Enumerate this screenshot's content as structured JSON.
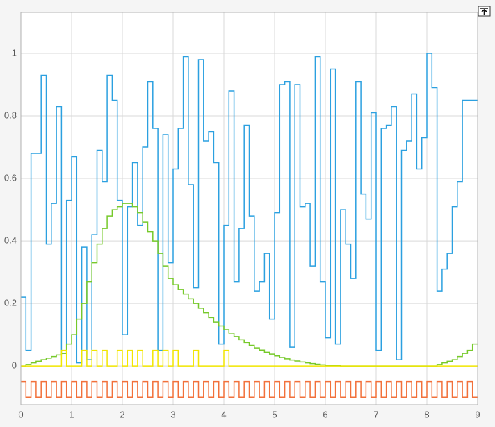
{
  "chart_data": {
    "type": "stairs",
    "x": [
      0,
      0.1,
      0.2,
      0.3,
      0.4,
      0.5,
      0.6,
      0.7,
      0.8,
      0.9,
      1.0,
      1.1,
      1.2,
      1.3,
      1.4,
      1.5,
      1.6,
      1.7,
      1.8,
      1.9,
      2.0,
      2.1,
      2.2,
      2.3,
      2.4,
      2.5,
      2.6,
      2.7,
      2.8,
      2.9,
      3.0,
      3.1,
      3.2,
      3.3,
      3.4,
      3.5,
      3.6,
      3.7,
      3.8,
      3.9,
      4.0,
      4.1,
      4.2,
      4.3,
      4.4,
      4.5,
      4.6,
      4.7,
      4.8,
      4.9,
      5.0,
      5.1,
      5.2,
      5.3,
      5.4,
      5.5,
      5.6,
      5.7,
      5.8,
      5.9,
      6.0,
      6.1,
      6.2,
      6.3,
      6.4,
      6.5,
      6.6,
      6.7,
      6.8,
      6.9,
      7.0,
      7.1,
      7.2,
      7.3,
      7.4,
      7.5,
      7.6,
      7.7,
      7.8,
      7.9,
      8.0,
      8.1,
      8.2,
      8.3,
      8.4,
      8.5,
      8.6,
      8.7,
      8.8,
      8.9
    ],
    "series": [
      {
        "color": "#2ba0e0",
        "values": [
          0.22,
          0.05,
          0.68,
          0.68,
          0.93,
          0.39,
          0.52,
          0.83,
          0.04,
          0.53,
          0.67,
          0.01,
          0.38,
          0.02,
          0.42,
          0.69,
          0.59,
          0.93,
          0.85,
          0.53,
          0.1,
          0.51,
          0.65,
          0.45,
          0.7,
          0.91,
          0.76,
          0.05,
          0.74,
          0.33,
          0.63,
          0.76,
          0.99,
          0.58,
          0.25,
          0.98,
          0.72,
          0.75,
          0.65,
          0.07,
          0.45,
          0.88,
          0.27,
          0.44,
          0.77,
          0.48,
          0.24,
          0.27,
          0.36,
          0.15,
          0.49,
          0.9,
          0.91,
          0.06,
          0.9,
          0.51,
          0.52,
          0.32,
          0.99,
          0.27,
          0.09,
          0.95,
          0.07,
          0.5,
          0.39,
          0.28,
          0.91,
          0.55,
          0.47,
          0.81,
          0.05,
          0.76,
          0.77,
          0.83,
          0.02,
          0.69,
          0.72,
          0.87,
          0.63,
          0.73,
          1.0,
          0.89,
          0.24,
          0.31,
          0.36,
          0.51,
          0.59,
          0.85,
          0.85,
          0.85
        ]
      },
      {
        "color": "#76c92a",
        "values": [
          0,
          0.005,
          0.01,
          0.015,
          0.02,
          0.025,
          0.03,
          0.035,
          0.04,
          0.07,
          0.1,
          0.15,
          0.2,
          0.27,
          0.33,
          0.39,
          0.44,
          0.48,
          0.5,
          0.51,
          0.52,
          0.52,
          0.51,
          0.49,
          0.46,
          0.43,
          0.4,
          0.36,
          0.32,
          0.28,
          0.26,
          0.245,
          0.23,
          0.215,
          0.2,
          0.185,
          0.17,
          0.155,
          0.14,
          0.128,
          0.116,
          0.105,
          0.094,
          0.084,
          0.075,
          0.066,
          0.058,
          0.051,
          0.044,
          0.038,
          0.032,
          0.027,
          0.023,
          0.019,
          0.016,
          0.013,
          0.01,
          0.008,
          0.006,
          0.004,
          0.003,
          0.002,
          0.001,
          0,
          0,
          0,
          0,
          0,
          0,
          0,
          0,
          0,
          0,
          0,
          0,
          0,
          0,
          0,
          0,
          0,
          0,
          0,
          0.005,
          0.01,
          0.015,
          0.02,
          0.03,
          0.04,
          0.05,
          0.07
        ]
      },
      {
        "color": "#f2e600",
        "values": [
          0,
          0,
          0,
          0,
          0,
          0,
          0,
          0,
          0.05,
          0,
          0,
          0,
          0.05,
          0,
          0.05,
          0,
          0.05,
          0,
          0,
          0.05,
          0,
          0.05,
          0,
          0.05,
          0,
          0,
          0.05,
          0,
          0.05,
          0,
          0.05,
          0,
          0,
          0,
          0.05,
          0,
          0,
          0,
          0,
          0,
          0.05,
          0,
          0,
          0,
          0,
          0,
          0,
          0,
          0,
          0,
          0,
          0,
          0,
          0,
          0,
          0,
          0,
          0,
          0,
          0,
          0,
          0,
          0,
          0,
          0,
          0,
          0,
          0,
          0,
          0,
          0,
          0,
          0,
          0,
          0,
          0,
          0,
          0,
          0,
          0,
          0,
          0,
          0,
          0,
          0,
          0,
          0,
          0,
          0,
          0
        ]
      },
      {
        "color": "#f2703a",
        "values": [
          -0.05,
          -0.1,
          -0.05,
          -0.1,
          -0.05,
          -0.1,
          -0.05,
          -0.1,
          -0.05,
          -0.1,
          -0.05,
          -0.1,
          -0.05,
          -0.1,
          -0.05,
          -0.1,
          -0.05,
          -0.1,
          -0.05,
          -0.1,
          -0.05,
          -0.1,
          -0.05,
          -0.1,
          -0.05,
          -0.1,
          -0.05,
          -0.1,
          -0.05,
          -0.1,
          -0.05,
          -0.1,
          -0.05,
          -0.1,
          -0.05,
          -0.1,
          -0.05,
          -0.1,
          -0.05,
          -0.1,
          -0.05,
          -0.1,
          -0.05,
          -0.1,
          -0.05,
          -0.1,
          -0.05,
          -0.1,
          -0.05,
          -0.1,
          -0.05,
          -0.1,
          -0.05,
          -0.1,
          -0.05,
          -0.1,
          -0.05,
          -0.1,
          -0.05,
          -0.1,
          -0.05,
          -0.1,
          -0.05,
          -0.1,
          -0.05,
          -0.1,
          -0.05,
          -0.1,
          -0.05,
          -0.1,
          -0.05,
          -0.1,
          -0.05,
          -0.1,
          -0.05,
          -0.1,
          -0.05,
          -0.1,
          -0.05,
          -0.1,
          -0.05,
          -0.1,
          -0.05,
          -0.1,
          -0.05,
          -0.1,
          -0.05,
          -0.1,
          -0.05,
          -0.1
        ]
      }
    ],
    "xlim": [
      0,
      9
    ],
    "ylim": [
      -0.124,
      1.131
    ],
    "xticks": [
      0,
      1,
      2,
      3,
      4,
      5,
      6,
      7,
      8,
      9
    ],
    "yticks": [
      0,
      0.2,
      0.4,
      0.6,
      0.8,
      1
    ],
    "grid": true
  }
}
